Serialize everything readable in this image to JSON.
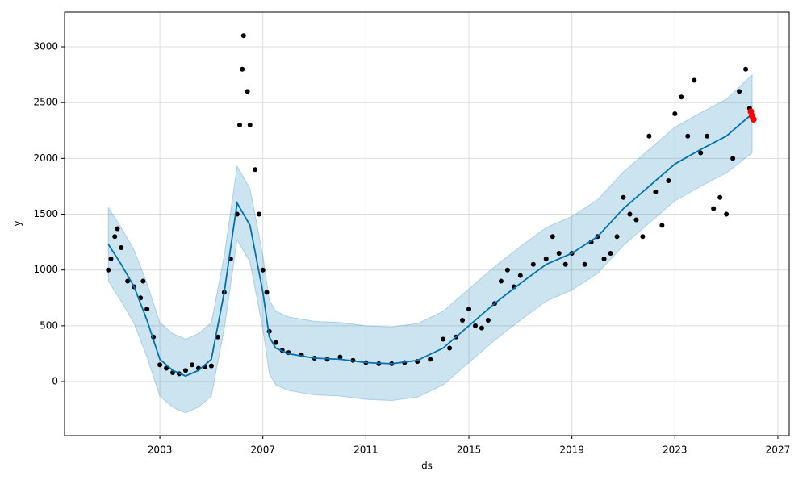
{
  "chart_data": {
    "type": "forecast",
    "x_label": "ds",
    "y_label": "y",
    "xlim": [
      1999.3,
      2027.44
    ],
    "ylim": [
      -484,
      3311
    ],
    "xticks": [
      2003,
      2007,
      2011,
      2015,
      2019,
      2023,
      2027
    ],
    "yticks": [
      0,
      500,
      1000,
      1500,
      2000,
      2500,
      3000
    ],
    "grid": true,
    "observed": {
      "color": "#000000",
      "x": [
        2001.0,
        2001.1,
        2001.25,
        2001.35,
        2001.5,
        2001.75,
        2002.0,
        2002.25,
        2002.35,
        2002.5,
        2002.75,
        2003.0,
        2003.25,
        2003.5,
        2003.75,
        2004.0,
        2004.25,
        2004.5,
        2004.75,
        2005.0,
        2005.25,
        2005.5,
        2005.75,
        2006.0,
        2006.1,
        2006.2,
        2006.25,
        2006.4,
        2006.5,
        2006.7,
        2006.85,
        2007.0,
        2007.15,
        2007.25,
        2007.5,
        2007.75,
        2008.0,
        2008.5,
        2009.0,
        2009.5,
        2010.0,
        2010.5,
        2011.0,
        2011.5,
        2012.0,
        2012.5,
        2013.0,
        2013.5,
        2014.0,
        2014.25,
        2014.5,
        2014.75,
        2015.0,
        2015.25,
        2015.5,
        2015.75,
        2016.0,
        2016.25,
        2016.5,
        2016.75,
        2017.0,
        2017.5,
        2018.0,
        2018.25,
        2018.5,
        2018.75,
        2019.0,
        2019.5,
        2019.75,
        2020.0,
        2020.25,
        2020.5,
        2020.75,
        2021.0,
        2021.25,
        2021.5,
        2021.75,
        2022.0,
        2022.25,
        2022.5,
        2022.75,
        2023.0,
        2023.25,
        2023.5,
        2023.75,
        2024.0,
        2024.25,
        2024.5,
        2024.75,
        2025.0,
        2025.25,
        2025.5,
        2025.75,
        2025.9
      ],
      "values": [
        1000,
        1100,
        1300,
        1370,
        1200,
        900,
        850,
        750,
        900,
        650,
        400,
        150,
        120,
        80,
        70,
        100,
        150,
        120,
        130,
        140,
        400,
        800,
        1100,
        1500,
        2300,
        2800,
        3100,
        2600,
        2300,
        1900,
        1500,
        1000,
        800,
        450,
        350,
        280,
        260,
        240,
        210,
        200,
        220,
        190,
        170,
        160,
        160,
        170,
        180,
        200,
        380,
        300,
        400,
        550,
        650,
        500,
        480,
        550,
        700,
        900,
        1000,
        850,
        950,
        1050,
        1100,
        1300,
        1150,
        1050,
        1150,
        1050,
        1250,
        1300,
        1100,
        1150,
        1300,
        1650,
        1500,
        1450,
        1300,
        2200,
        1700,
        1400,
        1800,
        2400,
        2550,
        2200,
        2700,
        2050,
        2200,
        1550,
        1650,
        1500,
        2000,
        2600,
        2800,
        2450
      ]
    },
    "future": {
      "color": "#ff0000",
      "x": [
        2025.95,
        2026.0,
        2026.05
      ],
      "values": [
        2420,
        2380,
        2350
      ]
    },
    "forecast": {
      "color": "#0072B2",
      "x": [
        2001.0,
        2001.5,
        2002.0,
        2002.5,
        2003.0,
        2003.5,
        2004.0,
        2004.5,
        2005.0,
        2005.5,
        2006.0,
        2006.5,
        2007.0,
        2007.25,
        2007.5,
        2008.0,
        2009.0,
        2010.0,
        2011.0,
        2012.0,
        2013.0,
        2014.0,
        2015.0,
        2016.0,
        2017.0,
        2018.0,
        2019.0,
        2020.0,
        2021.0,
        2022.0,
        2023.0,
        2024.0,
        2025.0,
        2026.0
      ],
      "values": [
        1230,
        1050,
        850,
        550,
        200,
        100,
        50,
        100,
        200,
        800,
        1600,
        1400,
        800,
        400,
        300,
        250,
        210,
        200,
        170,
        160,
        190,
        300,
        500,
        700,
        880,
        1050,
        1150,
        1300,
        1550,
        1750,
        1950,
        2080,
        2200,
        2400
      ],
      "lower": [
        900,
        720,
        520,
        220,
        -130,
        -230,
        -280,
        -230,
        -130,
        470,
        1270,
        1070,
        470,
        70,
        -30,
        -80,
        -120,
        -130,
        -160,
        -170,
        -140,
        -30,
        170,
        370,
        550,
        720,
        820,
        970,
        1220,
        1420,
        1620,
        1750,
        1870,
        2050
      ],
      "upper": [
        1560,
        1380,
        1180,
        880,
        530,
        430,
        380,
        430,
        530,
        1130,
        1930,
        1730,
        1130,
        730,
        630,
        580,
        540,
        530,
        500,
        490,
        520,
        630,
        830,
        1030,
        1210,
        1380,
        1480,
        1630,
        1880,
        2080,
        2280,
        2410,
        2530,
        2750
      ]
    }
  }
}
